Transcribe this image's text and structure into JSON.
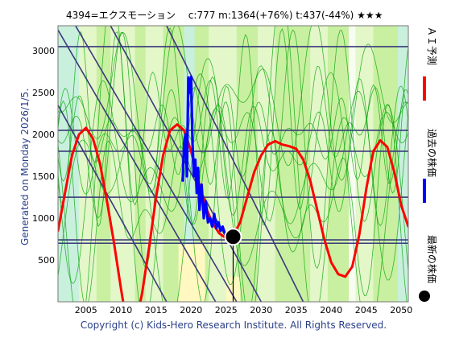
{
  "header": {
    "title": "4394=エクスモーション　 c:777  m:1364(+76%)  t:437(-44%)  ★★★"
  },
  "side_text": {
    "generated": "Generated on Monday 2026/1/5.",
    "copyright": "Copyright (c) Kids-Hero Research Institute. All Rights Reserved."
  },
  "legend": {
    "ai": {
      "label": "ＡＩ予測",
      "color": "#ff0000"
    },
    "past": {
      "label": "過去の株価",
      "color": "#0000ff"
    },
    "latest": {
      "label": "最新の株価",
      "color": "#000000"
    }
  },
  "colors": {
    "background": "#c8f0a0",
    "band_light": "#e8f8d0",
    "band_cyan": "#c8f0e8",
    "band_yellow": "#fff8c0",
    "grid": "#3a3a7a",
    "thin_green": "#00a000"
  },
  "chart_data": {
    "type": "line",
    "title": "4394=エクスモーション　 c:777  m:1364(+76%)  t:437(-44%)  ★★★",
    "xlim": [
      2001,
      2051
    ],
    "ylim": [
      0,
      3300
    ],
    "x_ticks": [
      2005,
      2010,
      2015,
      2020,
      2025,
      2030,
      2035,
      2040,
      2045,
      2050
    ],
    "y_ticks": [
      500,
      1000,
      1500,
      2000,
      2500,
      3000
    ],
    "horizontal_lines": [
      700,
      740,
      1250,
      1800,
      2050,
      3050
    ],
    "latest_point": {
      "x": 2026.0,
      "y": 777
    },
    "series": [
      {
        "name": "ＡＩ予測",
        "color": "#ff0000",
        "points": [
          [
            2001,
            850
          ],
          [
            2002,
            1300
          ],
          [
            2003,
            1750
          ],
          [
            2004,
            2000
          ],
          [
            2005,
            2080
          ],
          [
            2006,
            1950
          ],
          [
            2007,
            1650
          ],
          [
            2008,
            1200
          ],
          [
            2009,
            700
          ],
          [
            2010,
            150
          ],
          [
            2010.5,
            -100
          ],
          [
            2012.5,
            -100
          ],
          [
            2013,
            100
          ],
          [
            2014,
            650
          ],
          [
            2015,
            1250
          ],
          [
            2016,
            1750
          ],
          [
            2017,
            2050
          ],
          [
            2018,
            2120
          ],
          [
            2019,
            2050
          ],
          [
            2020,
            1800
          ],
          [
            2021,
            1450
          ],
          [
            2022,
            1150
          ],
          [
            2023,
            950
          ],
          [
            2024,
            820
          ],
          [
            2025,
            760
          ],
          [
            2026,
            790
          ],
          [
            2027,
            950
          ],
          [
            2028,
            1250
          ],
          [
            2029,
            1550
          ],
          [
            2030,
            1750
          ],
          [
            2031,
            1880
          ],
          [
            2032,
            1920
          ],
          [
            2033,
            1880
          ],
          [
            2034,
            1860
          ],
          [
            2035,
            1830
          ],
          [
            2036,
            1700
          ],
          [
            2037,
            1450
          ],
          [
            2038,
            1100
          ],
          [
            2039,
            750
          ],
          [
            2040,
            470
          ],
          [
            2041,
            330
          ],
          [
            2042,
            300
          ],
          [
            2043,
            420
          ],
          [
            2044,
            800
          ],
          [
            2045,
            1350
          ],
          [
            2046,
            1800
          ],
          [
            2047,
            1930
          ],
          [
            2048,
            1850
          ],
          [
            2049,
            1550
          ],
          [
            2050,
            1150
          ],
          [
            2051,
            900
          ]
        ]
      },
      {
        "name": "過去の株価",
        "color": "#0000ff",
        "points": [
          [
            2018.8,
            1450
          ],
          [
            2019.0,
            1900
          ],
          [
            2019.2,
            2000
          ],
          [
            2019.4,
            1500
          ],
          [
            2019.6,
            2680
          ],
          [
            2019.8,
            2500
          ],
          [
            2020.0,
            2690
          ],
          [
            2020.2,
            1900
          ],
          [
            2020.4,
            1500
          ],
          [
            2020.6,
            1700
          ],
          [
            2020.8,
            1300
          ],
          [
            2021.0,
            1600
          ],
          [
            2021.2,
            1100
          ],
          [
            2021.5,
            1400
          ],
          [
            2021.8,
            1000
          ],
          [
            2022.1,
            1200
          ],
          [
            2022.4,
            950
          ],
          [
            2022.7,
            1000
          ],
          [
            2023.0,
            900
          ],
          [
            2023.3,
            1050
          ],
          [
            2023.6,
            880
          ],
          [
            2023.9,
            950
          ],
          [
            2024.2,
            850
          ],
          [
            2024.5,
            900
          ],
          [
            2024.8,
            820
          ],
          [
            2025.1,
            800
          ],
          [
            2025.4,
            780
          ]
        ]
      }
    ],
    "trend_lines": [
      [
        [
          2003.5,
          3300
        ],
        [
          2026.5,
          0
        ]
      ],
      [
        [
          2008.5,
          3300
        ],
        [
          2030.0,
          0
        ]
      ],
      [
        [
          2016.5,
          3300
        ],
        [
          2036.0,
          0
        ]
      ],
      [
        [
          2001.0,
          3250
        ],
        [
          2023.5,
          0
        ]
      ],
      [
        [
          2001.0,
          2350
        ],
        [
          2016.5,
          0
        ]
      ]
    ]
  }
}
